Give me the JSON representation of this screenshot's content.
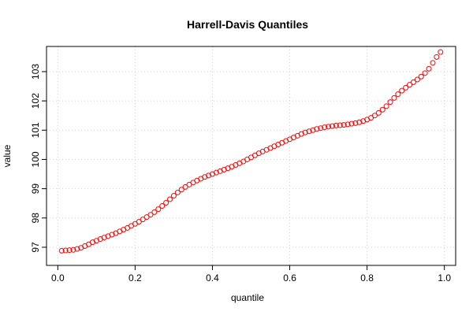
{
  "chart_data": {
    "type": "scatter",
    "title": "Harrell-Davis Quantiles",
    "x_label": "quantile",
    "y_label": "value",
    "x": [
      0.01,
      0.02,
      0.03,
      0.04,
      0.05,
      0.06,
      0.07,
      0.08,
      0.09,
      0.1,
      0.11,
      0.12,
      0.13,
      0.14,
      0.15,
      0.16,
      0.17,
      0.18,
      0.19,
      0.2,
      0.21,
      0.22,
      0.23,
      0.24,
      0.25,
      0.26,
      0.27,
      0.28,
      0.29,
      0.3,
      0.31,
      0.32,
      0.33,
      0.34,
      0.35,
      0.36,
      0.37,
      0.38,
      0.39,
      0.4,
      0.41,
      0.42,
      0.43,
      0.44,
      0.45,
      0.46,
      0.47,
      0.48,
      0.49,
      0.5,
      0.51,
      0.52,
      0.53,
      0.54,
      0.55,
      0.56,
      0.57,
      0.58,
      0.59,
      0.6,
      0.61,
      0.62,
      0.63,
      0.64,
      0.65,
      0.66,
      0.67,
      0.68,
      0.69,
      0.7,
      0.71,
      0.72,
      0.73,
      0.74,
      0.75,
      0.76,
      0.77,
      0.78,
      0.79,
      0.8,
      0.81,
      0.82,
      0.83,
      0.84,
      0.85,
      0.86,
      0.87,
      0.88,
      0.89,
      0.9,
      0.91,
      0.92,
      0.93,
      0.94,
      0.95,
      0.96,
      0.97,
      0.98,
      0.99
    ],
    "series": [
      {
        "color": "#ff0000",
        "values": [
          96.88,
          96.89,
          96.9,
          96.91,
          96.94,
          96.98,
          97.04,
          97.1,
          97.17,
          97.22,
          97.28,
          97.33,
          97.38,
          97.43,
          97.48,
          97.54,
          97.6,
          97.66,
          97.73,
          97.8,
          97.87,
          97.95,
          98.03,
          98.11,
          98.2,
          98.3,
          98.41,
          98.52,
          98.64,
          98.76,
          98.87,
          98.97,
          99.06,
          99.14,
          99.21,
          99.28,
          99.34,
          99.4,
          99.45,
          99.5,
          99.55,
          99.6,
          99.65,
          99.7,
          99.75,
          99.81,
          99.87,
          99.93,
          100.0,
          100.07,
          100.14,
          100.21,
          100.27,
          100.33,
          100.39,
          100.45,
          100.51,
          100.57,
          100.63,
          100.69,
          100.75,
          100.81,
          100.87,
          100.92,
          100.96,
          101.0,
          101.04,
          101.07,
          101.1,
          101.12,
          101.14,
          101.16,
          101.17,
          101.18,
          101.2,
          101.22,
          101.24,
          101.27,
          101.31,
          101.36,
          101.42,
          101.5,
          101.59,
          101.7,
          101.82,
          101.96,
          102.1,
          102.23,
          102.35,
          102.45,
          102.55,
          102.64,
          102.73,
          102.83,
          102.95,
          103.1,
          103.3,
          103.5,
          103.67
        ]
      }
    ],
    "xlim": [
      -0.0292,
      1.0292
    ],
    "ylim": [
      96.38,
      103.86
    ],
    "xticks": [
      {
        "value": 0,
        "label": "0.0"
      },
      0.2,
      0.4,
      0.6,
      0.8,
      {
        "value": 1,
        "label": "1.0"
      }
    ],
    "yticks": [
      97,
      98,
      99,
      100,
      101,
      102,
      103
    ],
    "grid": true
  }
}
